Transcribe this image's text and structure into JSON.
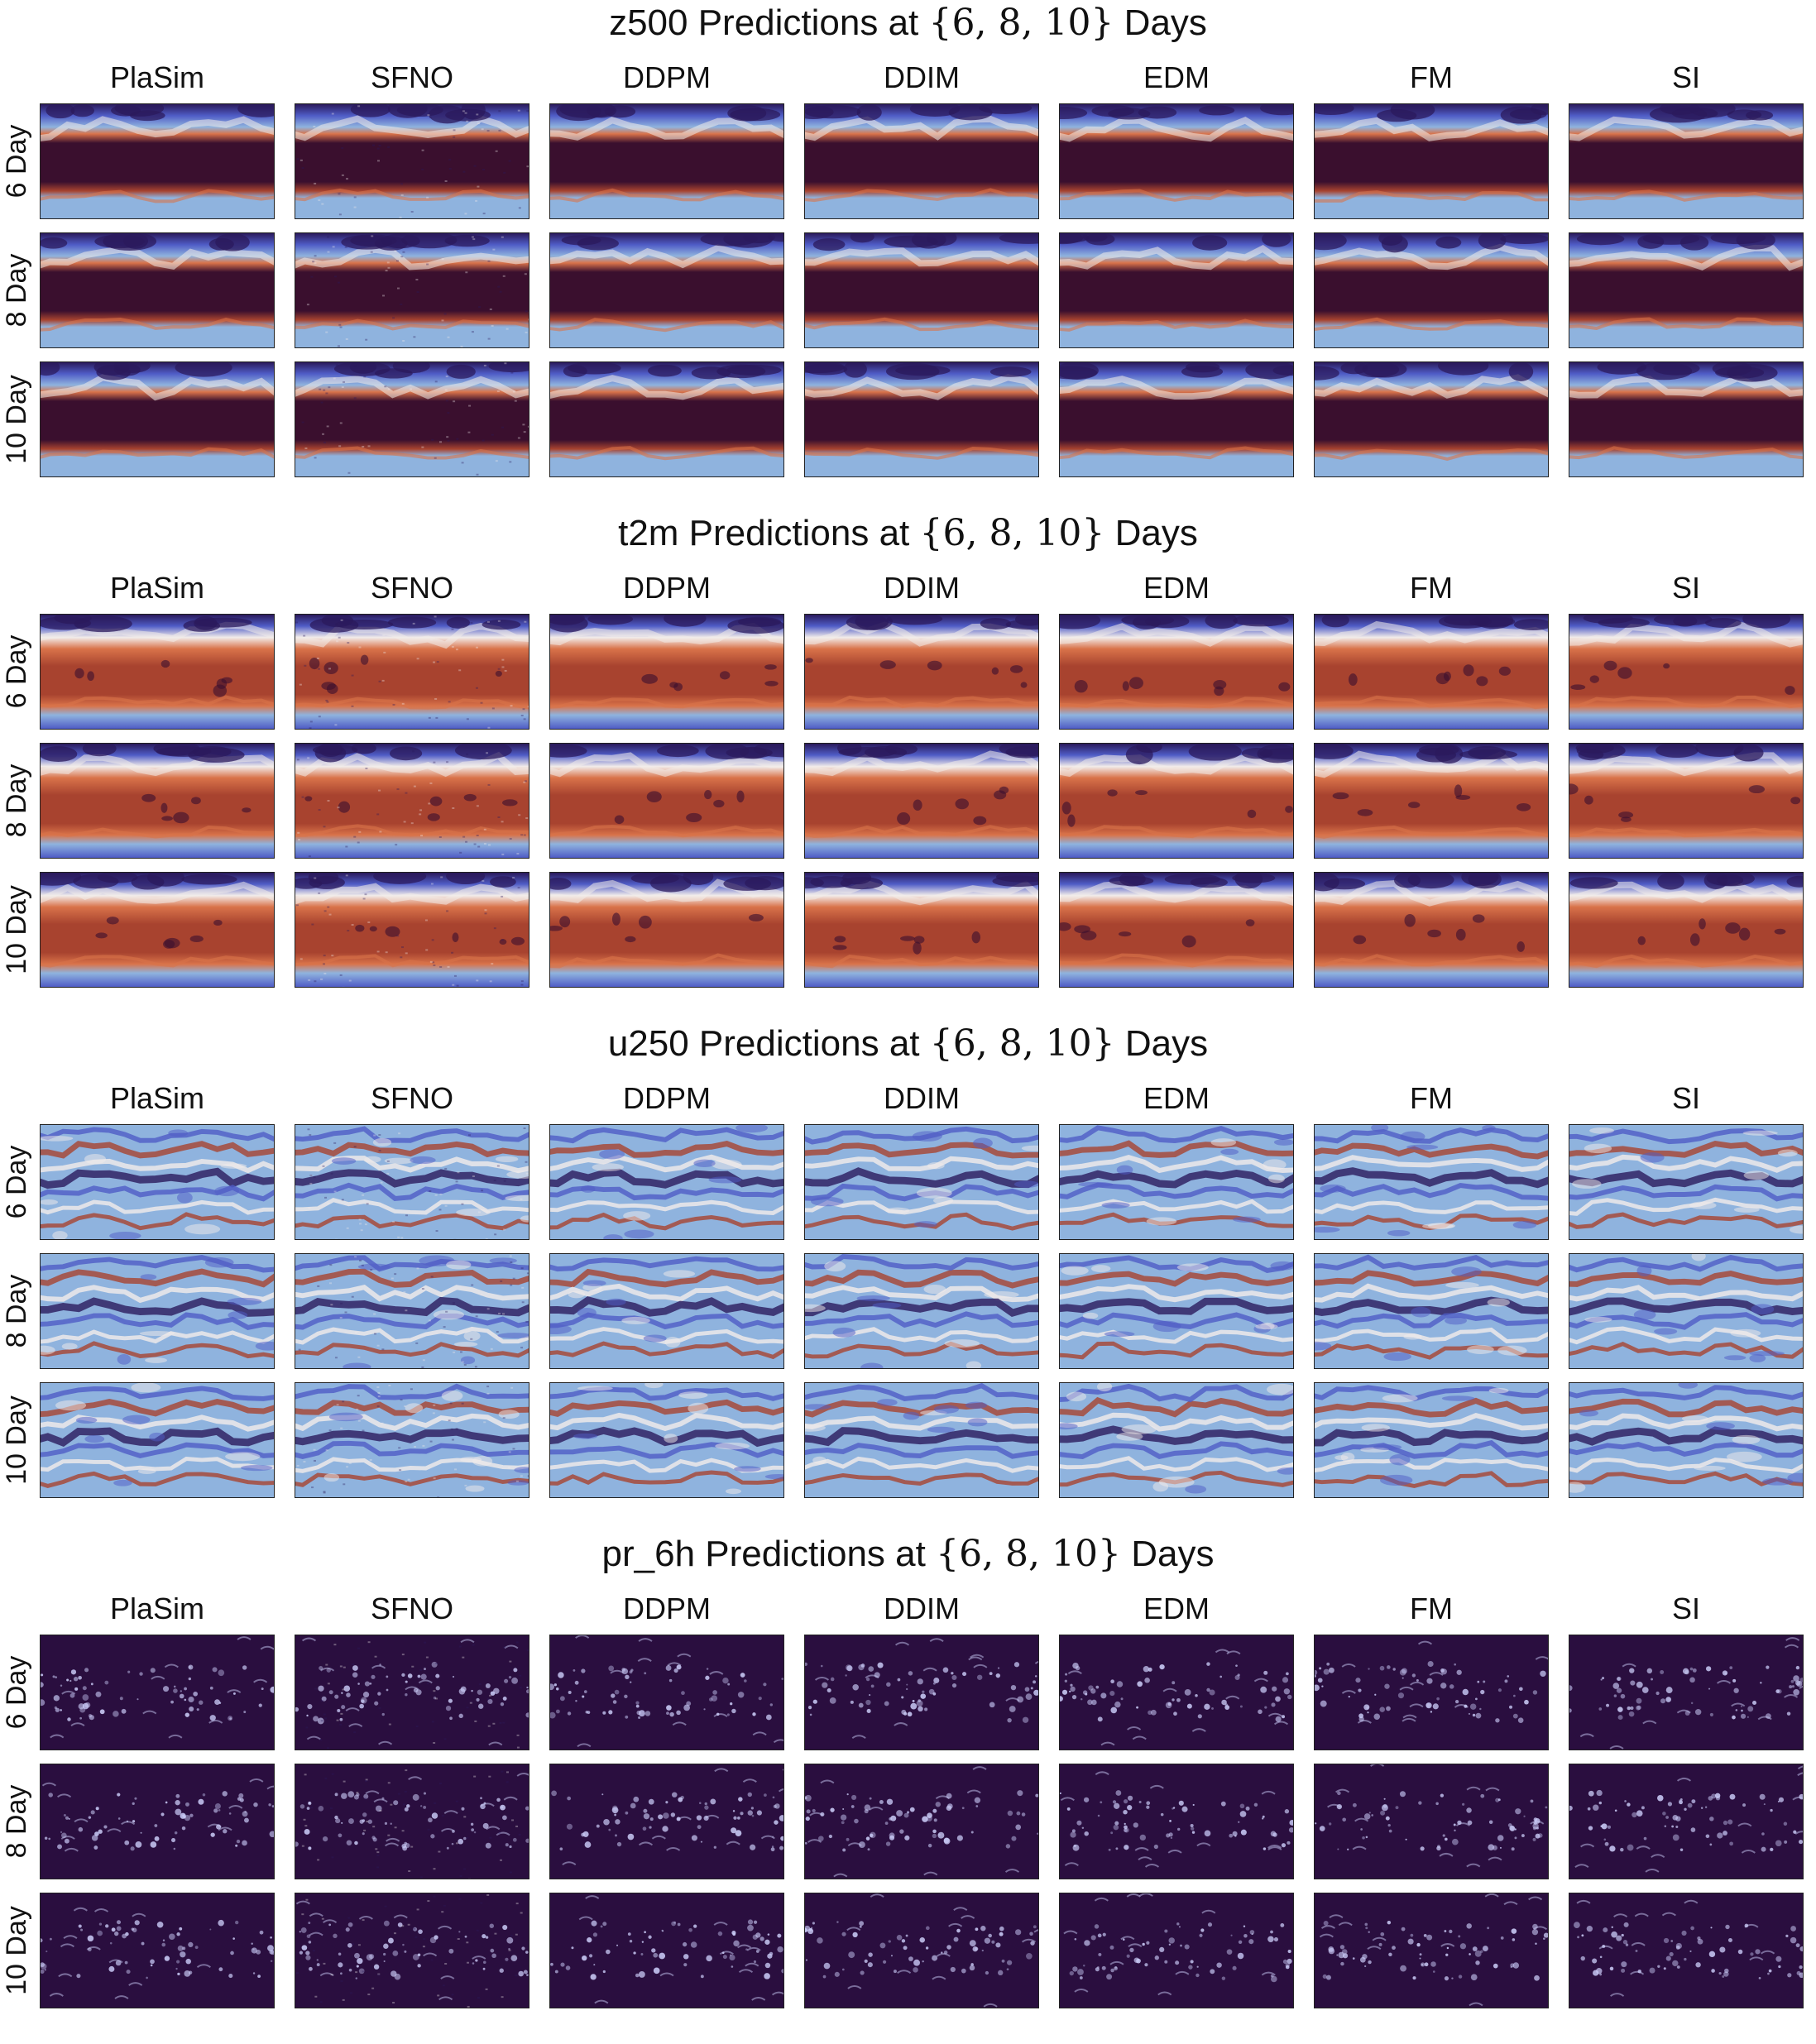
{
  "figure": {
    "columns": [
      "PlaSim",
      "SFNO",
      "DDPM",
      "DDIM",
      "EDM",
      "FM",
      "SI"
    ],
    "rows": [
      "6 Day",
      "8 Day",
      "10 Day"
    ],
    "sections": [
      {
        "variable": "z500",
        "title_prefix": "z500 Predictions at ",
        "title_math": "{6, 8, 10}",
        "title_suffix": " Days",
        "field": "z500"
      },
      {
        "variable": "t2m",
        "title_prefix": "t2m Predictions at ",
        "title_math": "{6, 8, 10}",
        "title_suffix": " Days",
        "field": "t2m"
      },
      {
        "variable": "u250",
        "title_prefix": "u250 Predictions at ",
        "title_math": "{6, 8, 10}",
        "title_suffix": " Days",
        "field": "u250"
      },
      {
        "variable": "pr_6h",
        "title_prefix": "pr_6h Predictions at ",
        "title_math": "{6, 8, 10}",
        "title_suffix": " Days",
        "field": "pr"
      }
    ]
  },
  "colors": {
    "dark_red": "#3a0f2e",
    "red": "#a8432f",
    "orange": "#d9734a",
    "white": "#f2ecea",
    "light_blue": "#8fb3de",
    "blue": "#4f5cc6",
    "navy": "#2b1a5c",
    "precip_bg": "#2a0e3f",
    "precip_light": "#c8c9f5"
  }
}
